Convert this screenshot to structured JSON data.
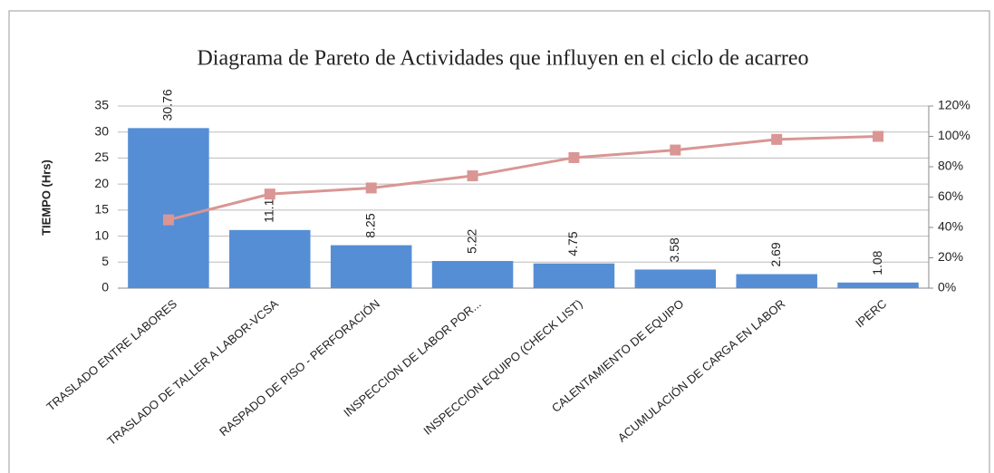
{
  "chart_data": {
    "type": "bar",
    "title": "Diagrama de Pareto de Actividades que influyen en el ciclo de acarreo",
    "y_label": "TIEMPO (Hrs)",
    "categories": [
      "TRASLADO ENTRE LABORES",
      "TRASLADO DE TALLER A LABOR-VCSA",
      "RASPADO DE PISO - PERFORACIÓN",
      "INSPECCION DE LABOR POR...",
      "INSPECCION EQUIPO (CHECK LIST)",
      "CALENTAMIENTO DE EQUIPO",
      "ACUMULACIÓN DE CARGA EN LABOR",
      "IPERC"
    ],
    "series": [
      {
        "type": "bar",
        "color": "#558ed5",
        "values": [
          30.76,
          11.17,
          8.25,
          5.22,
          4.75,
          3.58,
          2.69,
          1.08
        ]
      },
      {
        "type": "line",
        "axis": "y2",
        "color": "#d99694",
        "values": [
          45,
          62,
          66,
          74,
          86,
          91,
          98,
          100
        ]
      }
    ],
    "ylim": [
      0,
      35
    ],
    "yticks": [
      0,
      5,
      10,
      15,
      20,
      25,
      30,
      35
    ],
    "y2lim": [
      0,
      120
    ],
    "y2ticks": [
      {
        "value": 0,
        "label": "0%"
      },
      {
        "value": 20,
        "label": "20%"
      },
      {
        "value": 40,
        "label": "40%"
      },
      {
        "value": 60,
        "label": "60%"
      },
      {
        "value": 80,
        "label": "80%"
      },
      {
        "value": 100,
        "label": "100%"
      },
      {
        "value": 120,
        "label": "120%"
      }
    ],
    "grid": true
  }
}
